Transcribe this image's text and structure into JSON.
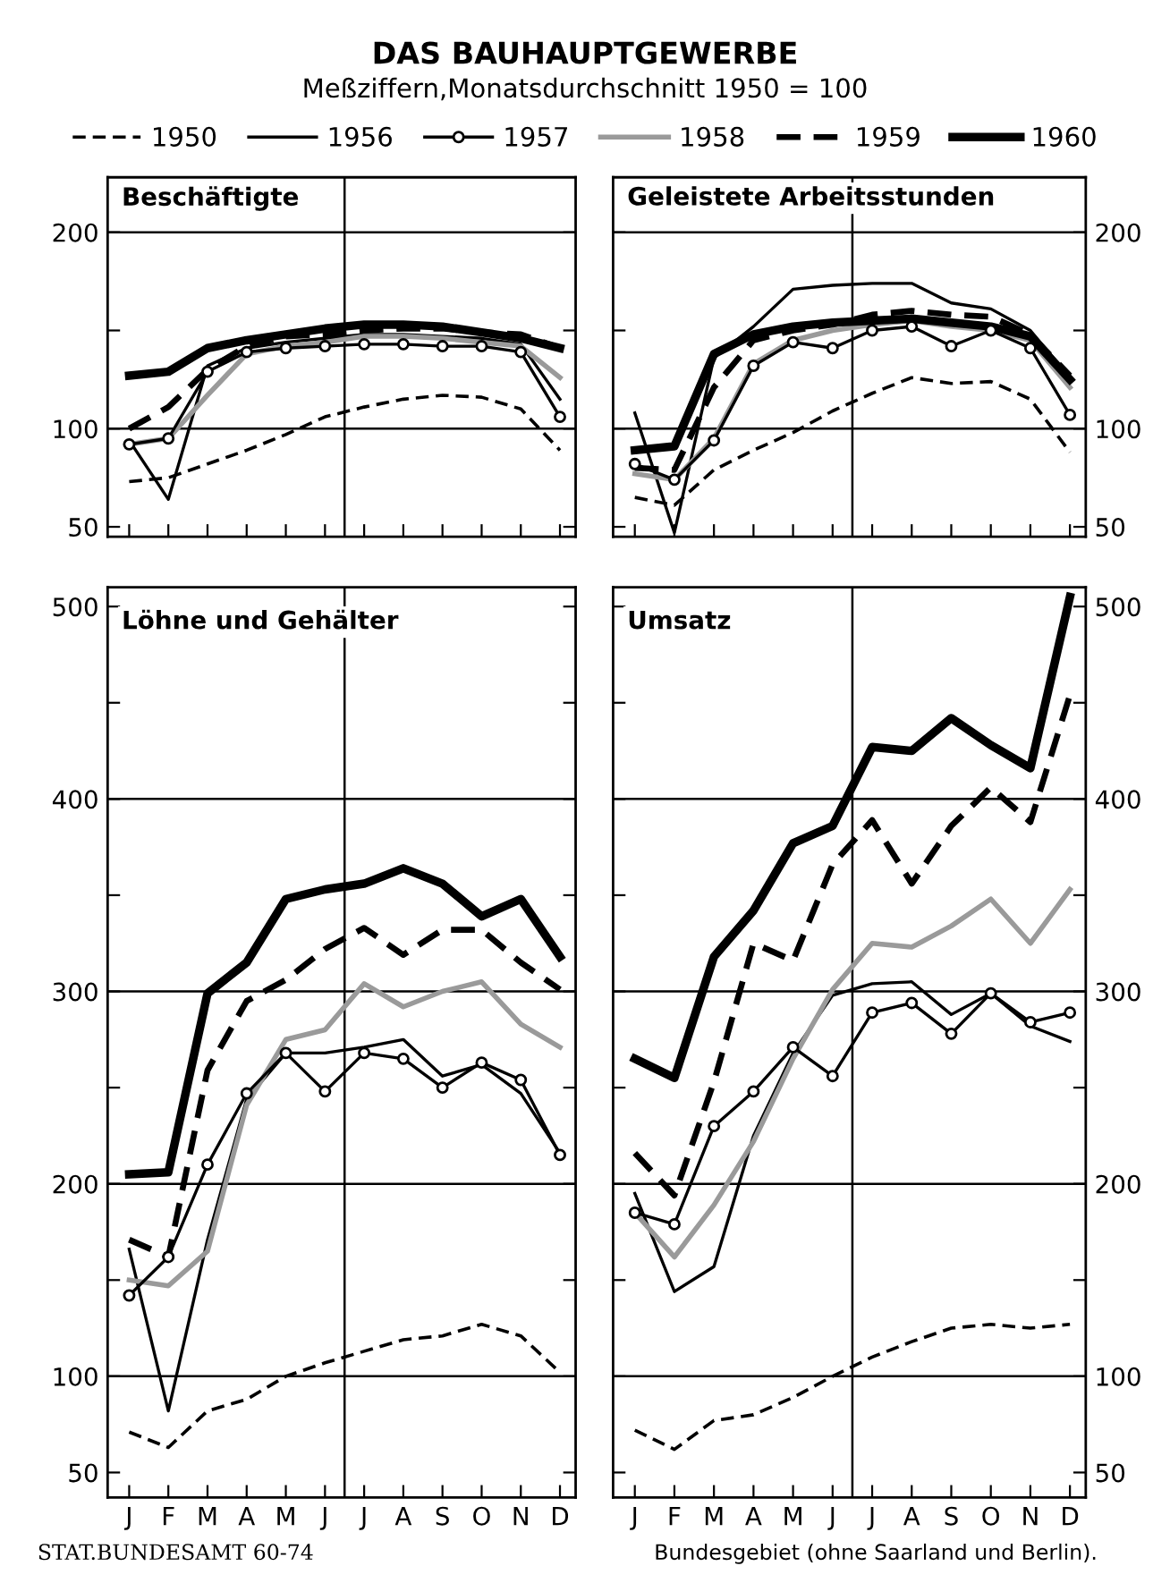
{
  "chart_data": [
    {
      "type": "line",
      "title": "Beschäftigte",
      "legend": "top",
      "annotations": [
        "DAS BAUHAUPTGEWERBE",
        "Meßziffern,Monatsdurchschnitt 1950 = 100"
      ],
      "tick_labels": "y",
      "categories": [
        null,
        null,
        null,
        null,
        null,
        null,
        null,
        null,
        null,
        null,
        null,
        null
      ],
      "ylim": [
        45,
        228
      ],
      "yticks": [
        50,
        100,
        {
          "value": 150,
          "label": null
        },
        200
      ],
      "ref_lines": [
        {
          "axis": "y",
          "value": 100
        },
        {
          "axis": "y",
          "value": 200
        }
      ],
      "series": [
        {
          "name": "1950",
          "color": "#000000",
          "line_style": "dashed",
          "marker": "none",
          "values": [
            73,
            75,
            82,
            89,
            97,
            106,
            111,
            115,
            117,
            116,
            110,
            89
          ]
        },
        {
          "name": "1956",
          "color": "#000000",
          "line_style": "solid",
          "marker": "none",
          "values": [
            94,
            64,
            132,
            141,
            144,
            146,
            148,
            148,
            147,
            146,
            143,
            115
          ]
        },
        {
          "name": "1957",
          "color": "#000000",
          "line_style": "solid",
          "marker": "circle",
          "values": [
            92,
            95,
            129,
            139,
            141,
            142,
            143,
            143,
            142,
            142,
            139,
            106
          ]
        },
        {
          "name": "1958",
          "color": "#9a9a9a",
          "line_style": "solid",
          "marker": "none",
          "values": [
            92,
            95,
            117,
            138,
            142,
            144,
            147,
            147,
            146,
            144,
            142,
            126
          ]
        },
        {
          "name": "1959",
          "color": "#000000",
          "line_style": "dashed",
          "marker": "none",
          "values": [
            100,
            111,
            130,
            142,
            147,
            148,
            150,
            151,
            151,
            149,
            148,
            141
          ]
        },
        {
          "name": "1960",
          "color": "#000000",
          "line_style": "solid",
          "marker": "none",
          "values": [
            127,
            129,
            141,
            145,
            148,
            151,
            153,
            153,
            152,
            149,
            146,
            141
          ]
        }
      ]
    },
    {
      "type": "line",
      "title": "Geleistete Arbeitsstunden",
      "tick_labels": "y",
      "categories": [
        null,
        null,
        null,
        null,
        null,
        null,
        null,
        null,
        null,
        null,
        null,
        null
      ],
      "ylim": [
        45,
        228
      ],
      "yticks": [
        50,
        100,
        {
          "value": 150,
          "label": null
        },
        200
      ],
      "ref_lines": [
        {
          "axis": "y",
          "value": 100
        },
        {
          "axis": "y",
          "value": 200
        }
      ],
      "series": [
        {
          "name": "1950",
          "color": "#000000",
          "line_style": "dashed",
          "marker": "none",
          "values": [
            65,
            61,
            79,
            89,
            98,
            109,
            118,
            126,
            123,
            124,
            115,
            88
          ]
        },
        {
          "name": "1956",
          "color": "#000000",
          "line_style": "solid",
          "marker": "none",
          "values": [
            108,
            47,
            136,
            152,
            171,
            173,
            174,
            174,
            164,
            161,
            150,
            126
          ]
        },
        {
          "name": "1957",
          "color": "#000000",
          "line_style": "solid",
          "marker": "circle",
          "values": [
            82,
            74,
            94,
            132,
            144,
            141,
            150,
            152,
            142,
            150,
            141,
            107
          ]
        },
        {
          "name": "1958",
          "color": "#9a9a9a",
          "line_style": "solid",
          "marker": "none",
          "values": [
            77,
            74,
            95,
            133,
            145,
            150,
            153,
            155,
            152,
            150,
            145,
            121
          ]
        },
        {
          "name": "1959",
          "color": "#000000",
          "line_style": "dashed",
          "marker": "none",
          "values": [
            80,
            79,
            121,
            145,
            150,
            153,
            158,
            160,
            158,
            157,
            148,
            127
          ]
        },
        {
          "name": "1960",
          "color": "#000000",
          "line_style": "solid",
          "marker": "none",
          "values": [
            89,
            91,
            138,
            148,
            152,
            154,
            155,
            156,
            154,
            152,
            147,
            125
          ]
        }
      ]
    },
    {
      "type": "line",
      "title": "Löhne und Gehälter",
      "annotations": [
        "STAT.BUNDESAMT 60-74"
      ],
      "categories": [
        "J",
        "F",
        "M",
        "A",
        "M",
        "J",
        "J",
        "A",
        "S",
        "O",
        "N",
        "D"
      ],
      "ylim": [
        37,
        510
      ],
      "yticks": [
        50,
        100,
        {
          "value": 150,
          "label": null
        },
        200,
        {
          "value": 250,
          "label": null
        },
        300,
        {
          "value": 350,
          "label": null
        },
        400,
        {
          "value": 450,
          "label": null
        },
        500
      ],
      "ref_lines": [
        {
          "axis": "y",
          "value": 100
        },
        {
          "axis": "y",
          "value": 200
        },
        {
          "axis": "y",
          "value": 300
        },
        {
          "axis": "y",
          "value": 400
        }
      ],
      "series": [
        {
          "name": "1950",
          "color": "#000000",
          "line_style": "dashed",
          "marker": "none",
          "values": [
            71,
            63,
            82,
            88,
            100,
            107,
            113,
            119,
            121,
            127,
            121,
            102
          ]
        },
        {
          "name": "1956",
          "color": "#000000",
          "line_style": "solid",
          "marker": "none",
          "values": [
            166,
            82,
            171,
            244,
            268,
            268,
            271,
            275,
            256,
            262,
            247,
            216
          ]
        },
        {
          "name": "1957",
          "color": "#000000",
          "line_style": "solid",
          "marker": "circle",
          "values": [
            142,
            162,
            210,
            247,
            268,
            248,
            268,
            265,
            250,
            263,
            254,
            215
          ]
        },
        {
          "name": "1958",
          "color": "#9a9a9a",
          "line_style": "solid",
          "marker": "none",
          "values": [
            150,
            147,
            165,
            241,
            275,
            280,
            304,
            292,
            300,
            305,
            283,
            271
          ]
        },
        {
          "name": "1959",
          "color": "#000000",
          "line_style": "dashed",
          "marker": "none",
          "values": [
            171,
            162,
            259,
            295,
            306,
            322,
            333,
            319,
            332,
            332,
            315,
            301
          ]
        },
        {
          "name": "1960",
          "color": "#000000",
          "line_style": "solid",
          "marker": "none",
          "values": [
            205,
            206,
            299,
            315,
            348,
            353,
            356,
            364,
            356,
            339,
            348,
            318
          ]
        }
      ]
    },
    {
      "type": "line",
      "title": "Umsatz",
      "annotations": [
        "Bundesgebiet (ohne Saarland und Berlin)."
      ],
      "categories": [
        "J",
        "F",
        "M",
        "A",
        "M",
        "J",
        "J",
        "A",
        "S",
        "O",
        "N",
        "D"
      ],
      "ylim": [
        37,
        510
      ],
      "yticks": [
        50,
        100,
        {
          "value": 150,
          "label": null
        },
        200,
        {
          "value": 250,
          "label": null
        },
        300,
        {
          "value": 350,
          "label": null
        },
        400,
        {
          "value": 450,
          "label": null
        },
        500
      ],
      "ref_lines": [
        {
          "axis": "y",
          "value": 100
        },
        {
          "axis": "y",
          "value": 200
        },
        {
          "axis": "y",
          "value": 300
        },
        {
          "axis": "y",
          "value": 400
        }
      ],
      "series": [
        {
          "name": "1950",
          "color": "#000000",
          "line_style": "dashed",
          "marker": "none",
          "values": [
            72,
            62,
            77,
            80,
            89,
            100,
            110,
            118,
            125,
            127,
            125,
            127
          ]
        },
        {
          "name": "1956",
          "color": "#000000",
          "line_style": "solid",
          "marker": "none",
          "values": [
            195,
            144,
            157,
            225,
            268,
            298,
            304,
            305,
            288,
            299,
            282,
            274
          ]
        },
        {
          "name": "1957",
          "color": "#000000",
          "line_style": "solid",
          "marker": "circle",
          "values": [
            185,
            179,
            230,
            248,
            271,
            256,
            289,
            294,
            278,
            299,
            284,
            289
          ]
        },
        {
          "name": "1958",
          "color": "#9a9a9a",
          "line_style": "solid",
          "marker": "none",
          "values": [
            185,
            162,
            189,
            222,
            265,
            301,
            325,
            323,
            334,
            348,
            325,
            353
          ]
        },
        {
          "name": "1959",
          "color": "#000000",
          "line_style": "dashed",
          "marker": "none",
          "values": [
            216,
            194,
            253,
            325,
            316,
            366,
            389,
            356,
            386,
            406,
            388,
            454
          ]
        },
        {
          "name": "1960",
          "color": "#000000",
          "line_style": "solid",
          "marker": "none",
          "values": [
            265,
            255,
            318,
            342,
            377,
            386,
            427,
            425,
            442,
            428,
            416,
            505
          ]
        }
      ]
    }
  ]
}
